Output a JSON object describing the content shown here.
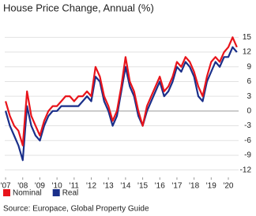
{
  "chart_data": {
    "type": "line",
    "title": "House Price Change, Annual (%)",
    "source": "Source: Europace, Global Property Guide",
    "x": [
      2007,
      2007.25,
      2007.5,
      2007.75,
      2008,
      2008.25,
      2008.5,
      2008.75,
      2009,
      2009.25,
      2009.5,
      2009.75,
      2010,
      2010.25,
      2010.5,
      2010.75,
      2011,
      2011.25,
      2011.5,
      2011.75,
      2012,
      2012.25,
      2012.5,
      2012.75,
      2013,
      2013.25,
      2013.5,
      2013.75,
      2014,
      2014.25,
      2014.5,
      2014.75,
      2015,
      2015.25,
      2015.5,
      2015.75,
      2016,
      2016.25,
      2016.5,
      2016.75,
      2017,
      2017.25,
      2017.5,
      2017.75,
      2018,
      2018.25,
      2018.5,
      2018.75,
      2019,
      2019.25,
      2019.5,
      2019.75,
      2020,
      2020.25,
      2020.5
    ],
    "series": [
      {
        "name": "Nominal",
        "color": "#e8141b",
        "values": [
          2,
          -1,
          -3,
          -4,
          -7,
          4,
          -1,
          -3,
          -5,
          -2,
          0,
          1,
          1,
          2,
          3,
          3,
          2,
          3,
          3,
          4,
          3,
          9,
          7,
          3,
          1,
          -2,
          0,
          5,
          11,
          6,
          4,
          0,
          -3,
          1,
          3,
          5,
          7,
          4,
          5,
          7,
          10,
          9,
          11,
          10,
          8,
          5,
          3,
          7,
          10,
          11,
          10,
          12,
          13,
          15,
          13
        ]
      },
      {
        "name": "Real",
        "color": "#1a2f8a",
        "values": [
          0,
          -3,
          -5,
          -7,
          -10,
          1,
          -3,
          -5,
          -6,
          -3,
          -1,
          0,
          0,
          1,
          1,
          1,
          1,
          1,
          2,
          3,
          2,
          7,
          6,
          2,
          0,
          -3,
          -1,
          4,
          9,
          5,
          3,
          -1,
          -3,
          0,
          2,
          4,
          6,
          3,
          4,
          6,
          9,
          8,
          10,
          9,
          7,
          3,
          2,
          6,
          8,
          10,
          9,
          11,
          11,
          13,
          12
        ]
      }
    ],
    "xlim": [
      2006.95,
      2020.6
    ],
    "xticks": [
      {
        "value": 2007,
        "label": "'07"
      },
      {
        "value": 2008,
        "label": "'08"
      },
      {
        "value": 2009,
        "label": "'09"
      },
      {
        "value": 2010,
        "label": "'10"
      },
      {
        "value": 2011,
        "label": "'11"
      },
      {
        "value": 2012,
        "label": "'12"
      },
      {
        "value": 2013,
        "label": "'13"
      },
      {
        "value": 2014,
        "label": "'14"
      },
      {
        "value": 2015,
        "label": "'15"
      },
      {
        "value": 2016,
        "label": "'16"
      },
      {
        "value": 2017,
        "label": "'17"
      },
      {
        "value": 2018,
        "label": "'18"
      },
      {
        "value": 2019,
        "label": "'19"
      },
      {
        "value": 2020,
        "label": "'20"
      }
    ],
    "ylim": [
      -13.5,
      16.5
    ],
    "yticks": [
      15,
      12,
      9,
      6,
      3,
      0,
      -3,
      -6,
      -9,
      -12
    ],
    "grid": true,
    "legend": "bottom-left"
  }
}
